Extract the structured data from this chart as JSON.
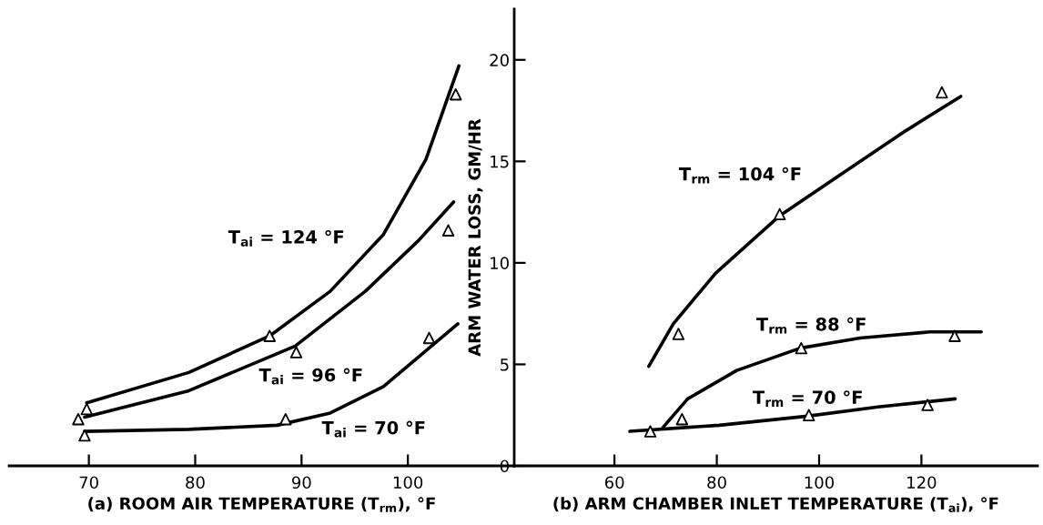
{
  "chart_data": [
    {
      "type": "line",
      "xlabel": "(a) ROOM AIR TEMPERATURE (T$_{rm}$), °F",
      "xlim": [
        62.5,
        110
      ],
      "xticks": [
        70,
        80,
        90,
        100
      ],
      "ylim": [
        0,
        22.5
      ],
      "tick_labels": "x",
      "line_style": "solid",
      "grid": false,
      "series": [
        {
          "name": "T$_{ai}$ = 124 °F",
          "color": "#000000",
          "marker": "none",
          "x": [
            69.8,
            79.4,
            87.0,
            92.7,
            97.7,
            101.7,
            104.8
          ],
          "values": [
            3.1,
            4.6,
            6.4,
            8.6,
            11.4,
            15.1,
            19.7
          ]
        },
        {
          "name": "T$_{ai}$ = 96 °F",
          "color": "#000000",
          "marker": "none",
          "x": [
            69.6,
            79.4,
            89.4,
            96.0,
            101.0,
            104.3
          ],
          "values": [
            2.4,
            3.7,
            5.9,
            8.6,
            11.1,
            13.0
          ]
        },
        {
          "name": "T$_{ai}$ = 70 °F",
          "color": "#000000",
          "marker": "none",
          "x": [
            69.6,
            79.4,
            87.7,
            92.7,
            97.7,
            101.3,
            104.7
          ],
          "values": [
            1.7,
            1.8,
            2.0,
            2.6,
            3.9,
            5.5,
            7.0
          ]
        },
        {
          "type": "scatter",
          "color": "#000000",
          "marker": "triangle",
          "x": [
            69.8,
            87.0,
            104.5
          ],
          "values": [
            2.8,
            6.4,
            18.3
          ]
        },
        {
          "type": "scatter",
          "color": "#000000",
          "marker": "triangle",
          "x": [
            69.0,
            89.5,
            103.8
          ],
          "values": [
            2.3,
            5.6,
            11.6
          ]
        },
        {
          "type": "scatter",
          "color": "#000000",
          "marker": "triangle",
          "x": [
            69.6,
            88.5,
            102.0
          ],
          "values": [
            1.5,
            2.3,
            6.3
          ]
        }
      ]
    },
    {
      "type": "line",
      "xlabel": "(b) ARM CHAMBER INLET TEMPERATURE (T$_{ai}$), °F",
      "ylabel": "ARM WATER LOSS, GM/HR",
      "xlim": [
        40.4,
        142.7
      ],
      "xticks": [
        60,
        80,
        100,
        120
      ],
      "ylim": [
        0,
        22.5
      ],
      "yticks": [
        0,
        5,
        10,
        15,
        20
      ],
      "line_style": "solid",
      "grid": false,
      "series": [
        {
          "name": "T$_{rm}$ = 104 °F",
          "color": "#000000",
          "marker": "none",
          "x": [
            66.7,
            71.5,
            79.8,
            92.2,
            104.5,
            116.9,
            127.7
          ],
          "values": [
            4.9,
            7.0,
            9.5,
            12.3,
            14.4,
            16.5,
            18.2
          ]
        },
        {
          "name": "T$_{rm}$ = 88 °F",
          "color": "#000000",
          "marker": "none",
          "x": [
            69.5,
            74.3,
            83.9,
            96.3,
            108.0,
            121.7,
            131.7
          ],
          "values": [
            1.9,
            3.3,
            4.7,
            5.8,
            6.3,
            6.6,
            6.6
          ]
        },
        {
          "name": "T$_{rm}$ = 70 °F",
          "color": "#000000",
          "marker": "none",
          "x": [
            63.0,
            80.5,
            97.7,
            111.5,
            126.6
          ],
          "values": [
            1.7,
            2.0,
            2.45,
            2.9,
            3.3
          ]
        },
        {
          "type": "scatter",
          "color": "#000000",
          "marker": "triangle",
          "x": [
            72.5,
            92.3,
            124.0
          ],
          "values": [
            6.5,
            12.4,
            18.4
          ]
        },
        {
          "type": "scatter",
          "color": "#000000",
          "marker": "triangle",
          "x": [
            73.2,
            96.5,
            126.5
          ],
          "values": [
            2.3,
            5.8,
            6.4
          ]
        },
        {
          "type": "scatter",
          "color": "#000000",
          "marker": "triangle",
          "x": [
            67.0,
            98.0,
            121.2
          ],
          "values": [
            1.7,
            2.5,
            3.0
          ]
        }
      ]
    }
  ]
}
